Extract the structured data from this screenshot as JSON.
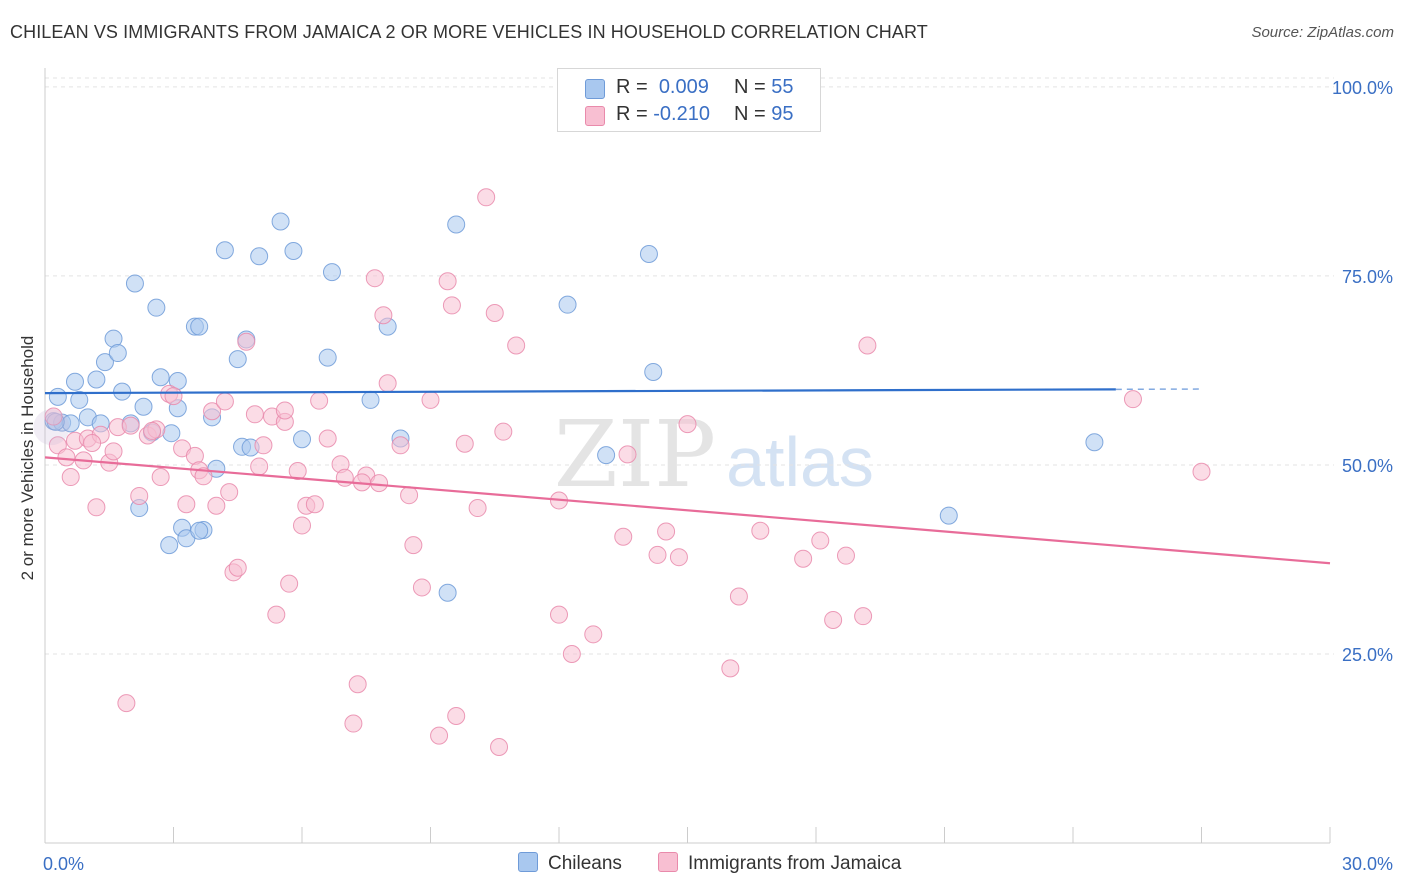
{
  "title": "CHILEAN VS IMMIGRANTS FROM JAMAICA 2 OR MORE VEHICLES IN HOUSEHOLD CORRELATION CHART",
  "source": "Source: ZipAtlas.com",
  "watermark": {
    "zip": "ZIP",
    "atlas": "atlas"
  },
  "legend_top": [
    {
      "r_label": "R =",
      "r_value": "0.009",
      "n_label": "N =",
      "n_value": "55",
      "color": "#a9c8ef",
      "border": "#6f9bd8"
    },
    {
      "r_label": "R =",
      "r_value": "-0.210",
      "n_label": "N =",
      "n_value": "95",
      "color": "#f8bfd2",
      "border": "#e98aab"
    }
  ],
  "legend_bottom": [
    {
      "label": "Chileans",
      "color": "#a9c8ef",
      "border": "#6f9bd8"
    },
    {
      "label": "Immigrants from Jamaica",
      "color": "#f8bfd2",
      "border": "#e98aab"
    }
  ],
  "chart_data": {
    "type": "scatter",
    "title": "CHILEAN VS IMMIGRANTS FROM JAMAICA 2 OR MORE VEHICLES IN HOUSEHOLD CORRELATION CHART",
    "xlabel": "",
    "ylabel": "2 or more Vehicles in Household",
    "xlim": [
      0,
      30
    ],
    "ylim": [
      0,
      102.5
    ],
    "x_tick_labels": [
      {
        "value": 0,
        "label": "0.0%"
      },
      {
        "value": 30,
        "label": "30.0%"
      }
    ],
    "y_tick_labels": [
      {
        "value": 25,
        "label": "25.0%"
      },
      {
        "value": 50,
        "label": "50.0%"
      },
      {
        "value": 75,
        "label": "75.0%"
      },
      {
        "value": 100,
        "label": "100.0%"
      }
    ],
    "legend_position": "top-center",
    "grid": true,
    "series": [
      {
        "name": "Chileans",
        "color": "#6f9bd8",
        "fill": "#a9c8ef",
        "trend": {
          "x": [
            0,
            25
          ],
          "y": [
            59.5,
            60.0
          ],
          "dashed_to": 27
        },
        "points": [
          [
            0.2,
            55.8
          ],
          [
            0.3,
            59.0
          ],
          [
            0.4,
            55.6
          ],
          [
            0.6,
            55.5
          ],
          [
            0.7,
            61.0
          ],
          [
            0.8,
            58.6
          ],
          [
            1.0,
            56.3
          ],
          [
            1.2,
            61.3
          ],
          [
            1.3,
            55.5
          ],
          [
            1.4,
            63.6
          ],
          [
            1.6,
            66.7
          ],
          [
            1.7,
            64.8
          ],
          [
            1.8,
            59.7
          ],
          [
            2.0,
            55.5
          ],
          [
            2.1,
            74.0
          ],
          [
            2.2,
            44.3
          ],
          [
            2.3,
            57.7
          ],
          [
            2.5,
            54.3
          ],
          [
            2.6,
            70.8
          ],
          [
            2.7,
            61.6
          ],
          [
            2.9,
            39.4
          ],
          [
            3.1,
            61.1
          ],
          [
            3.1,
            57.5
          ],
          [
            3.2,
            41.7
          ],
          [
            3.3,
            40.3
          ],
          [
            3.5,
            68.3
          ],
          [
            3.6,
            68.3
          ],
          [
            3.7,
            41.4
          ],
          [
            3.9,
            56.3
          ],
          [
            4.0,
            49.5
          ],
          [
            4.2,
            78.4
          ],
          [
            4.5,
            64.0
          ],
          [
            4.6,
            52.4
          ],
          [
            4.7,
            66.6
          ],
          [
            4.8,
            52.3
          ],
          [
            5.0,
            77.6
          ],
          [
            5.5,
            82.2
          ],
          [
            5.8,
            78.3
          ],
          [
            6.0,
            53.4
          ],
          [
            6.6,
            64.2
          ],
          [
            6.7,
            75.5
          ],
          [
            7.6,
            58.6
          ],
          [
            8.0,
            68.3
          ],
          [
            8.3,
            53.5
          ],
          [
            9.4,
            33.1
          ],
          [
            9.6,
            81.8
          ],
          [
            12.2,
            71.2
          ],
          [
            13.1,
            51.3
          ],
          [
            14.1,
            77.9
          ],
          [
            14.2,
            62.3
          ],
          [
            24.5,
            53.0
          ],
          [
            21.1,
            43.3
          ],
          [
            0.25,
            55.7
          ],
          [
            3.6,
            41.3
          ],
          [
            2.95,
            54.2
          ]
        ]
      },
      {
        "name": "Immigrants from Jamaica",
        "color": "#e98aab",
        "fill": "#f8bfd2",
        "trend": {
          "x": [
            0,
            30
          ],
          "y": [
            51.0,
            37.0
          ]
        },
        "points": [
          [
            0.2,
            56.4
          ],
          [
            0.3,
            52.6
          ],
          [
            0.5,
            51.0
          ],
          [
            0.6,
            48.4
          ],
          [
            0.7,
            53.2
          ],
          [
            0.9,
            50.6
          ],
          [
            1.0,
            53.5
          ],
          [
            1.2,
            44.4
          ],
          [
            1.3,
            54.0
          ],
          [
            1.5,
            50.3
          ],
          [
            1.6,
            51.8
          ],
          [
            1.7,
            55.0
          ],
          [
            1.9,
            18.5
          ],
          [
            2.0,
            55.2
          ],
          [
            2.2,
            45.9
          ],
          [
            2.4,
            53.9
          ],
          [
            2.6,
            54.7
          ],
          [
            2.7,
            48.4
          ],
          [
            2.9,
            59.4
          ],
          [
            3.0,
            59.1
          ],
          [
            3.2,
            52.2
          ],
          [
            3.3,
            44.8
          ],
          [
            3.5,
            51.2
          ],
          [
            3.6,
            49.3
          ],
          [
            3.7,
            48.5
          ],
          [
            3.9,
            57.1
          ],
          [
            4.0,
            44.6
          ],
          [
            4.2,
            58.4
          ],
          [
            4.3,
            46.4
          ],
          [
            4.4,
            35.8
          ],
          [
            4.5,
            36.4
          ],
          [
            4.7,
            66.3
          ],
          [
            4.9,
            56.7
          ],
          [
            5.0,
            49.8
          ],
          [
            5.1,
            52.6
          ],
          [
            5.3,
            56.4
          ],
          [
            5.4,
            30.2
          ],
          [
            5.6,
            55.7
          ],
          [
            5.7,
            34.3
          ],
          [
            5.9,
            49.2
          ],
          [
            6.0,
            42.0
          ],
          [
            6.1,
            44.6
          ],
          [
            6.3,
            44.8
          ],
          [
            6.4,
            58.5
          ],
          [
            6.6,
            53.5
          ],
          [
            6.9,
            50.1
          ],
          [
            7.0,
            48.3
          ],
          [
            7.2,
            15.8
          ],
          [
            7.3,
            21.0
          ],
          [
            7.5,
            48.6
          ],
          [
            7.7,
            74.7
          ],
          [
            7.8,
            47.6
          ],
          [
            7.9,
            69.8
          ],
          [
            8.0,
            60.8
          ],
          [
            8.3,
            52.6
          ],
          [
            8.5,
            46.0
          ],
          [
            8.6,
            39.4
          ],
          [
            8.8,
            33.8
          ],
          [
            9.2,
            14.2
          ],
          [
            9.4,
            74.3
          ],
          [
            9.5,
            71.1
          ],
          [
            9.6,
            16.8
          ],
          [
            9.8,
            52.8
          ],
          [
            10.1,
            44.3
          ],
          [
            10.3,
            85.4
          ],
          [
            10.5,
            70.1
          ],
          [
            10.6,
            12.7
          ],
          [
            10.7,
            54.4
          ],
          [
            11.0,
            65.8
          ],
          [
            12.0,
            30.2
          ],
          [
            12.0,
            45.3
          ],
          [
            12.3,
            25.0
          ],
          [
            12.8,
            27.6
          ],
          [
            13.5,
            40.5
          ],
          [
            13.6,
            51.4
          ],
          [
            14.3,
            38.1
          ],
          [
            14.5,
            41.2
          ],
          [
            14.8,
            37.8
          ],
          [
            15.0,
            55.4
          ],
          [
            16.0,
            23.1
          ],
          [
            16.2,
            32.6
          ],
          [
            16.7,
            41.3
          ],
          [
            17.7,
            37.6
          ],
          [
            18.1,
            40.0
          ],
          [
            18.4,
            29.5
          ],
          [
            18.7,
            38.0
          ],
          [
            19.1,
            30.0
          ],
          [
            19.2,
            65.8
          ],
          [
            25.4,
            58.7
          ],
          [
            27.0,
            49.1
          ],
          [
            1.1,
            52.9
          ],
          [
            2.5,
            54.5
          ],
          [
            5.6,
            57.2
          ],
          [
            7.4,
            47.7
          ],
          [
            9.0,
            58.6
          ]
        ]
      }
    ]
  }
}
